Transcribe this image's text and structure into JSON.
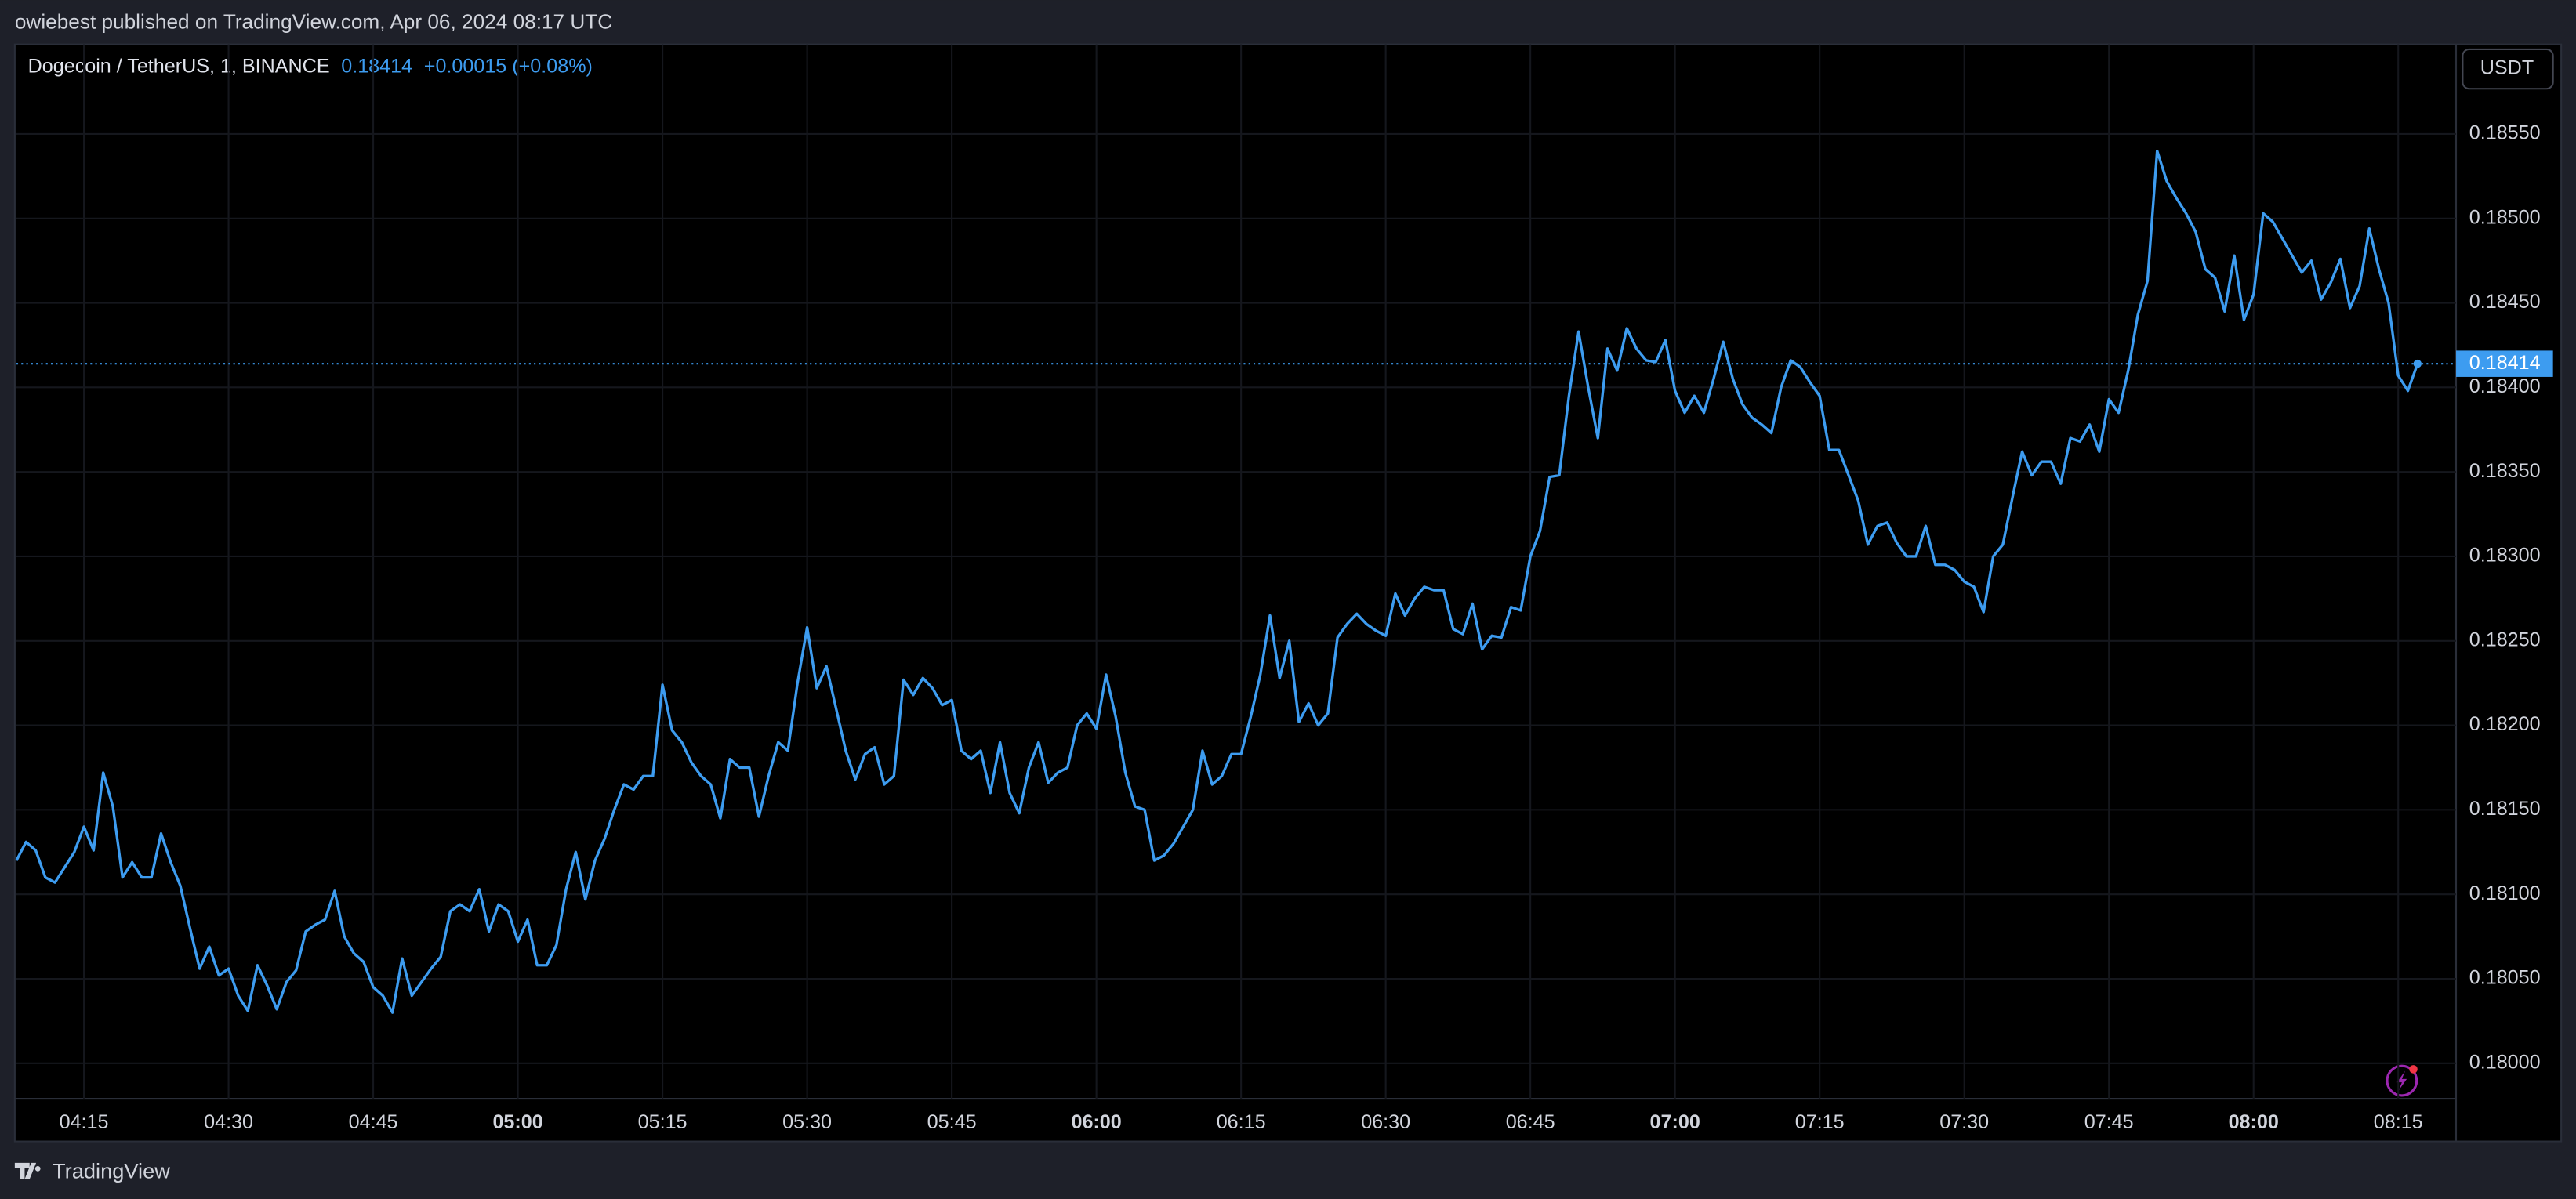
{
  "header": {
    "publisher": "owiebest published on TradingView.com, Apr 06, 2024 08:17 UTC",
    "button": "USDT",
    "footer": "TradingView"
  },
  "chart_data": {
    "type": "line",
    "title": "Dogecoin / TetherUS, 1, BINANCE",
    "last_price": 0.18414,
    "change": "+0.00015 (+0.08%)",
    "color": "#3d9cf0",
    "grid": true,
    "xlim": [
      "04:08",
      "08:21"
    ],
    "ylim": [
      0.17979,
      0.18603
    ],
    "xticks": [
      "04:15",
      "04:30",
      "04:45",
      "05:00",
      "05:15",
      "05:30",
      "05:45",
      "06:00",
      "06:15",
      "06:30",
      "06:45",
      "07:00",
      "07:15",
      "07:30",
      "07:45",
      "08:00",
      "08:15"
    ],
    "yticks": [
      {
        "value": 0.18,
        "label": "0.18000"
      },
      {
        "value": 0.1805,
        "label": "0.18050"
      },
      {
        "value": 0.181,
        "label": "0.18100"
      },
      {
        "value": 0.1815,
        "label": "0.18150"
      },
      {
        "value": 0.182,
        "label": "0.18200"
      },
      {
        "value": 0.1825,
        "label": "0.18250"
      },
      {
        "value": 0.183,
        "label": "0.18300"
      },
      {
        "value": 0.1835,
        "label": "0.18350"
      },
      {
        "value": 0.184,
        "label": "0.18400"
      },
      {
        "value": 0.1845,
        "label": "0.18450"
      },
      {
        "value": 0.185,
        "label": "0.18500"
      },
      {
        "value": 0.1855,
        "label": "0.18550"
      }
    ],
    "x": [
      "04:08",
      "04:09",
      "04:10",
      "04:11",
      "04:12",
      "04:14",
      "04:15",
      "04:16",
      "04:17",
      "04:18",
      "04:19",
      "04:20",
      "04:21",
      "04:22",
      "04:23",
      "04:24",
      "04:25",
      "04:26",
      "04:27",
      "04:28",
      "04:29",
      "04:30",
      "04:31",
      "04:32",
      "04:33",
      "04:34",
      "04:35",
      "04:36",
      "04:37",
      "04:38",
      "04:39",
      "04:40",
      "04:41",
      "04:42",
      "04:43",
      "04:44",
      "04:45",
      "04:46",
      "04:47",
      "04:48",
      "04:49",
      "04:50",
      "04:51",
      "04:52",
      "04:53",
      "04:54",
      "04:55",
      "04:56",
      "04:57",
      "04:58",
      "04:59",
      "05:00",
      "05:01",
      "05:02",
      "05:03",
      "05:04",
      "05:05",
      "05:06",
      "05:07",
      "05:08",
      "05:09",
      "05:10",
      "05:11",
      "05:12",
      "05:13",
      "05:14",
      "05:15",
      "05:16",
      "05:17",
      "05:18",
      "05:19",
      "05:20",
      "05:21",
      "05:22",
      "05:23",
      "05:24",
      "05:25",
      "05:26",
      "05:27",
      "05:28",
      "05:29",
      "05:30",
      "05:31",
      "05:32",
      "05:33",
      "05:34",
      "05:35",
      "05:36",
      "05:37",
      "05:38",
      "05:39",
      "05:40",
      "05:41",
      "05:42",
      "05:43",
      "05:44",
      "05:45",
      "05:46",
      "05:47",
      "05:48",
      "05:49",
      "05:50",
      "05:51",
      "05:52",
      "05:53",
      "05:54",
      "05:55",
      "05:56",
      "05:57",
      "05:58",
      "05:59",
      "06:00",
      "06:01",
      "06:02",
      "06:03",
      "06:04",
      "06:05",
      "06:06",
      "06:07",
      "06:08",
      "06:09",
      "06:10",
      "06:11",
      "06:12",
      "06:13",
      "06:14",
      "06:15",
      "06:16",
      "06:17",
      "06:18",
      "06:19",
      "06:20",
      "06:21",
      "06:22",
      "06:23",
      "06:24",
      "06:25",
      "06:26",
      "06:27",
      "06:28",
      "06:29",
      "06:30",
      "06:31",
      "06:32",
      "06:33",
      "06:34",
      "06:35",
      "06:36",
      "06:37",
      "06:38",
      "06:39",
      "06:40",
      "06:41",
      "06:42",
      "06:43",
      "06:44",
      "06:45",
      "06:46",
      "06:47",
      "06:48",
      "06:49",
      "06:50",
      "06:51",
      "06:52",
      "06:53",
      "06:54",
      "06:55",
      "06:56",
      "06:57",
      "06:58",
      "06:59",
      "07:00",
      "07:01",
      "07:02",
      "07:03",
      "07:04",
      "07:05",
      "07:06",
      "07:07",
      "07:08",
      "07:09",
      "07:10",
      "07:11",
      "07:12",
      "07:13",
      "07:14",
      "07:15",
      "07:16",
      "07:17",
      "07:18",
      "07:19",
      "07:20",
      "07:21",
      "07:22",
      "07:23",
      "07:24",
      "07:25",
      "07:26",
      "07:27",
      "07:28",
      "07:29",
      "07:30",
      "07:31",
      "07:32",
      "07:33",
      "07:34",
      "07:35",
      "07:36",
      "07:37",
      "07:38",
      "07:39",
      "07:40",
      "07:41",
      "07:42",
      "07:43",
      "07:44",
      "07:45",
      "07:46",
      "07:47",
      "07:48",
      "07:49",
      "07:50",
      "07:51",
      "07:52",
      "07:53",
      "07:54",
      "07:55",
      "07:56",
      "07:57",
      "07:58",
      "07:59",
      "08:00",
      "08:01",
      "08:02",
      "08:03",
      "08:04",
      "08:05",
      "08:06",
      "08:07",
      "08:08",
      "08:09",
      "08:10",
      "08:11",
      "08:12",
      "08:13",
      "08:14",
      "08:15",
      "08:16",
      "08:17"
    ],
    "values": [
      0.1812,
      0.18131,
      0.18126,
      0.1811,
      0.18107,
      0.18125,
      0.1814,
      0.18126,
      0.18172,
      0.18152,
      0.1811,
      0.18119,
      0.1811,
      0.1811,
      0.18136,
      0.18119,
      0.18105,
      0.1808,
      0.18056,
      0.18069,
      0.18052,
      0.18056,
      0.1804,
      0.18031,
      0.18058,
      0.18046,
      0.18032,
      0.18048,
      0.18055,
      0.18078,
      0.18082,
      0.18085,
      0.18102,
      0.18075,
      0.18065,
      0.1806,
      0.18045,
      0.1804,
      0.1803,
      0.18062,
      0.1804,
      0.18048,
      0.18056,
      0.18063,
      0.1809,
      0.18094,
      0.1809,
      0.18103,
      0.18078,
      0.18094,
      0.1809,
      0.18072,
      0.18085,
      0.18058,
      0.18058,
      0.1807,
      0.18103,
      0.18125,
      0.18097,
      0.1812,
      0.18133,
      0.1815,
      0.18165,
      0.18162,
      0.1817,
      0.1817,
      0.18224,
      0.18197,
      0.1819,
      0.18178,
      0.1817,
      0.18165,
      0.18145,
      0.1818,
      0.18175,
      0.18175,
      0.18146,
      0.1817,
      0.1819,
      0.18185,
      0.18225,
      0.18258,
      0.18222,
      0.18235,
      0.1821,
      0.18185,
      0.18168,
      0.18183,
      0.18187,
      0.18165,
      0.1817,
      0.18227,
      0.18218,
      0.18228,
      0.18222,
      0.18212,
      0.18215,
      0.18185,
      0.1818,
      0.18185,
      0.1816,
      0.1819,
      0.1816,
      0.18148,
      0.18175,
      0.1819,
      0.18166,
      0.18172,
      0.18175,
      0.182,
      0.18207,
      0.18198,
      0.1823,
      0.18205,
      0.18172,
      0.18152,
      0.1815,
      0.1812,
      0.18123,
      0.1813,
      0.1814,
      0.1815,
      0.18185,
      0.18165,
      0.1817,
      0.18183,
      0.18183,
      0.18205,
      0.1823,
      0.18265,
      0.18228,
      0.1825,
      0.18202,
      0.18213,
      0.182,
      0.18207,
      0.18252,
      0.1826,
      0.18266,
      0.1826,
      0.18256,
      0.18253,
      0.18278,
      0.18265,
      0.18275,
      0.18282,
      0.1828,
      0.1828,
      0.18257,
      0.18254,
      0.18272,
      0.18245,
      0.18253,
      0.18252,
      0.1827,
      0.18268,
      0.183,
      0.18315,
      0.18347,
      0.18348,
      0.18395,
      0.18433,
      0.184,
      0.1837,
      0.18423,
      0.1841,
      0.18435,
      0.18423,
      0.18416,
      0.18415,
      0.18428,
      0.18398,
      0.18385,
      0.18395,
      0.18385,
      0.18405,
      0.18427,
      0.18405,
      0.1839,
      0.18382,
      0.18378,
      0.18373,
      0.184,
      0.18416,
      0.18412,
      0.18403,
      0.18395,
      0.18363,
      0.18363,
      0.18348,
      0.18333,
      0.18307,
      0.18318,
      0.1832,
      0.18308,
      0.183,
      0.183,
      0.18318,
      0.18295,
      0.18295,
      0.18292,
      0.18285,
      0.18282,
      0.18267,
      0.183,
      0.18307,
      0.18335,
      0.18362,
      0.18348,
      0.18356,
      0.18356,
      0.18343,
      0.1837,
      0.18368,
      0.18378,
      0.18362,
      0.18393,
      0.18385,
      0.1841,
      0.18443,
      0.18463,
      0.1854,
      0.18522,
      0.18512,
      0.18503,
      0.18492,
      0.1847,
      0.18465,
      0.18445,
      0.18478,
      0.1844,
      0.18455,
      0.18503,
      0.18498,
      0.18488,
      0.18478,
      0.18468,
      0.18475,
      0.18452,
      0.18462,
      0.18476,
      0.18447,
      0.1846,
      0.18494,
      0.1847,
      0.1845,
      0.18407,
      0.18398,
      0.18414
    ]
  }
}
